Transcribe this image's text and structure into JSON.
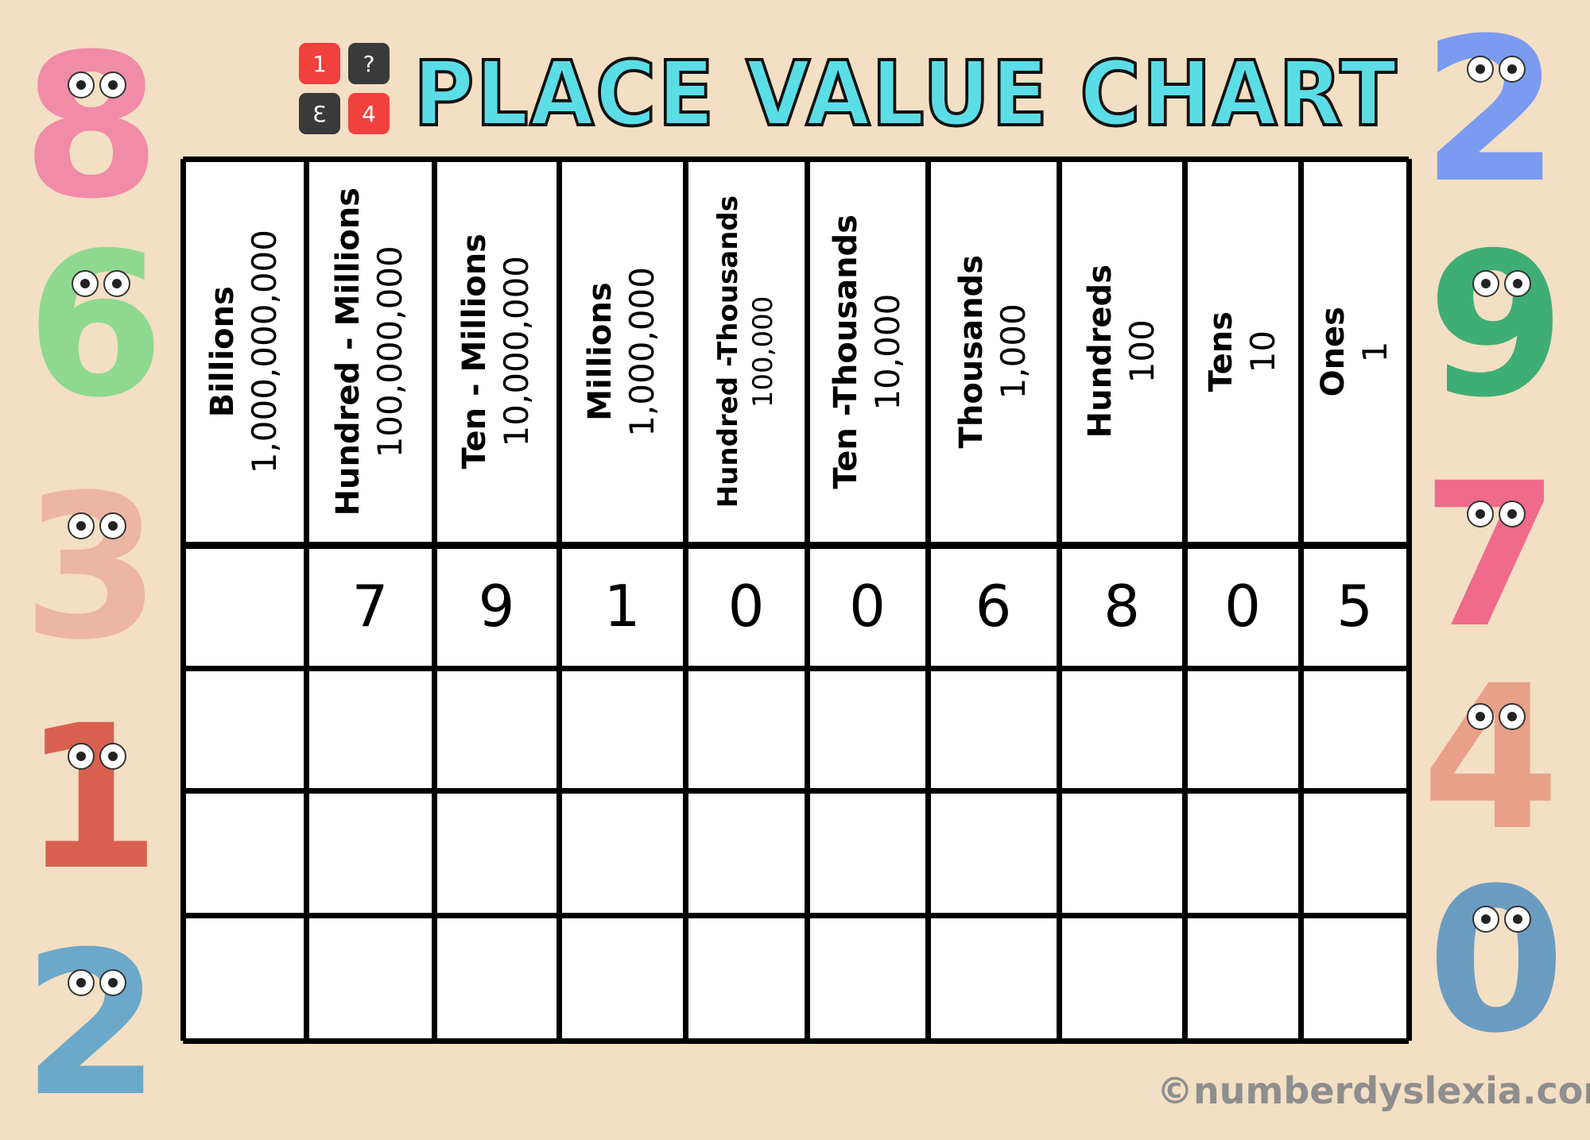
{
  "header": {
    "title": "PLACE VALUE CHART",
    "logo_tiles": [
      "1",
      "?",
      "3",
      "4"
    ]
  },
  "table": {
    "columns": [
      {
        "name": "Billions",
        "value": "1,000,000,000"
      },
      {
        "name": "Hundred - Millions",
        "value": "100,000,000"
      },
      {
        "name": "Ten - Millions",
        "value": "10,000,000"
      },
      {
        "name": "Millions",
        "value": "1,000,000"
      },
      {
        "name": "Hundred -Thousands",
        "value": "100,000"
      },
      {
        "name": "Ten -Thousands",
        "value": "10,000"
      },
      {
        "name": "Thousands",
        "value": "1,000"
      },
      {
        "name": "Hundreds",
        "value": "100"
      },
      {
        "name": "Tens",
        "value": "10"
      },
      {
        "name": "Ones",
        "value": "1"
      }
    ],
    "rows": [
      [
        "",
        "7",
        "9",
        "1",
        "0",
        "0",
        "6",
        "8",
        "0",
        "5"
      ],
      [
        "",
        "",
        "",
        "",
        "",
        "",
        "",
        "",
        "",
        ""
      ],
      [
        "",
        "",
        "",
        "",
        "",
        "",
        "",
        "",
        "",
        ""
      ],
      [
        "",
        "",
        "",
        "",
        "",
        "",
        "",
        "",
        "",
        ""
      ]
    ]
  },
  "decorations": {
    "left_characters": [
      {
        "digit": "8",
        "color": "#F08BA8"
      },
      {
        "digit": "6",
        "color": "#8ED98F"
      },
      {
        "digit": "3",
        "color": "#EDB5A3"
      },
      {
        "digit": "1",
        "color": "#D9604F"
      },
      {
        "digit": "2",
        "color": "#6BA8C9"
      }
    ],
    "right_characters": [
      {
        "digit": "2",
        "color": "#7B9BF0"
      },
      {
        "digit": "9",
        "color": "#3FAE75"
      },
      {
        "digit": "7",
        "color": "#F06A8C"
      },
      {
        "digit": "4",
        "color": "#E8A088"
      },
      {
        "digit": "0",
        "color": "#6A9CC2"
      }
    ]
  },
  "watermark": "©numberdyslexia.com",
  "colors": {
    "background": "#F3DFC3",
    "title": "#5BDDE6",
    "logo_red": "#F2403D",
    "logo_dark": "#3A3A3A"
  }
}
